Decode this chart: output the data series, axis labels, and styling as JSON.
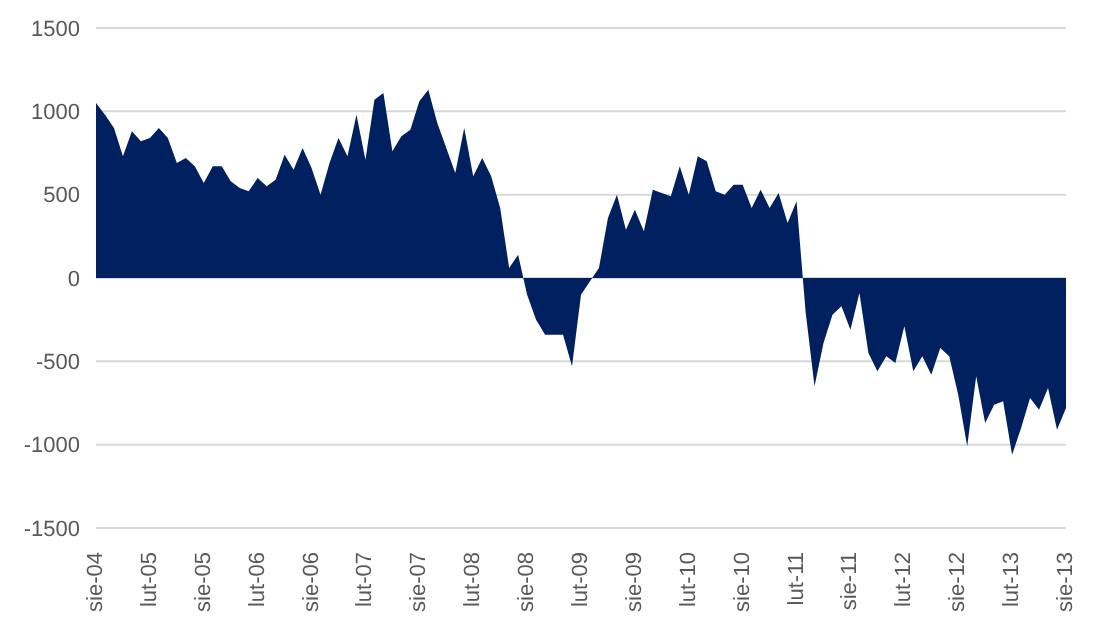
{
  "chart_data": {
    "type": "area",
    "categories": [
      "sie-04",
      null,
      null,
      null,
      null,
      null,
      "lut-05",
      null,
      null,
      null,
      null,
      null,
      "sie-05",
      null,
      null,
      null,
      null,
      null,
      "lut-06",
      null,
      null,
      null,
      null,
      null,
      "sie-06",
      null,
      null,
      null,
      null,
      null,
      "lut-07",
      null,
      null,
      null,
      null,
      null,
      "sie-07",
      null,
      null,
      null,
      null,
      null,
      "lut-08",
      null,
      null,
      null,
      null,
      null,
      "sie-08",
      null,
      null,
      null,
      null,
      null,
      "lut-09",
      null,
      null,
      null,
      null,
      null,
      "sie-09",
      null,
      null,
      null,
      null,
      null,
      "lut-10",
      null,
      null,
      null,
      null,
      null,
      "sie-10",
      null,
      null,
      null,
      null,
      null,
      "lut-11",
      null,
      null,
      null,
      null,
      null,
      "sie-11",
      null,
      null,
      null,
      null,
      null,
      "lut-12",
      null,
      null,
      null,
      null,
      null,
      "sie-12",
      null,
      null,
      null,
      null,
      null,
      "lut-13",
      null,
      null,
      null,
      null,
      null,
      "sie-13"
    ],
    "values": [
      1050,
      980,
      900,
      730,
      880,
      820,
      840,
      900,
      840,
      690,
      720,
      670,
      570,
      670,
      670,
      580,
      540,
      520,
      600,
      550,
      590,
      740,
      650,
      780,
      660,
      500,
      690,
      840,
      730,
      980,
      710,
      1070,
      1110,
      760,
      850,
      890,
      1060,
      1130,
      930,
      780,
      630,
      900,
      610,
      720,
      610,
      420,
      60,
      140,
      -100,
      -250,
      -340,
      -340,
      -340,
      -530,
      -100,
      -20,
      60,
      360,
      500,
      290,
      410,
      280,
      530,
      510,
      490,
      670,
      500,
      730,
      700,
      520,
      500,
      560,
      560,
      420,
      530,
      420,
      510,
      330,
      460,
      -200,
      -650,
      -390,
      -220,
      -170,
      -310,
      -90,
      -450,
      -560,
      -470,
      -510,
      -290,
      -560,
      -470,
      -580,
      -420,
      -470,
      -700,
      -1010,
      -590,
      -870,
      -760,
      -740,
      -1060,
      -900,
      -720,
      -790,
      -660,
      -910,
      -780
    ],
    "color": "#002060",
    "ylim": [
      -1500,
      1500
    ],
    "yticks": [
      -1500,
      -1000,
      -500,
      0,
      500,
      1000,
      1500
    ],
    "grid": "y"
  }
}
